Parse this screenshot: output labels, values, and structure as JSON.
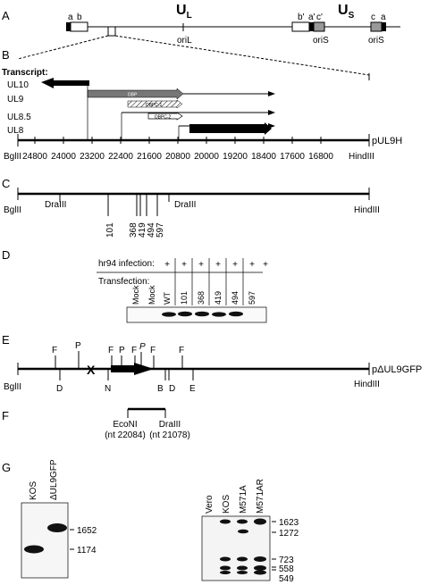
{
  "panels": [
    "A",
    "B",
    "C",
    "D",
    "E",
    "F",
    "G"
  ],
  "panelA": {
    "ul": "U",
    "ul_sub": "L",
    "us": "U",
    "us_sub": "S",
    "repeat_labels": [
      "a",
      "b",
      "b'",
      "a'",
      "c'",
      "c",
      "a"
    ],
    "ori_labels": [
      "oriL",
      "oriS",
      "oriS"
    ]
  },
  "panelB": {
    "transcript_heading": "Transcript:",
    "transcripts": [
      "UL10",
      "UL9",
      "UL8.5",
      "UL8"
    ],
    "box_labels": [
      "OBP",
      "OBPC-1",
      "OBPC-2"
    ],
    "plasmid": "pUL9H",
    "left_site": "BglII",
    "right_site": "HindIII",
    "ticks": [
      "24800",
      "24000",
      "23200",
      "22400",
      "21600",
      "20800",
      "20000",
      "19200",
      "18400",
      "17600",
      "16800"
    ]
  },
  "panelC": {
    "sites": [
      "BglII",
      "DraIII",
      "DraIII",
      "HindIII"
    ],
    "mutations": [
      "101",
      "368",
      "419",
      "494",
      "597"
    ]
  },
  "panelD": {
    "row1_label": "hr94 infection:",
    "row2_label": "Transfection:",
    "infection": [
      "",
      "+",
      "+",
      "+",
      "+",
      "+",
      "+",
      "+"
    ],
    "transfection": [
      "Mock",
      "Mock",
      "WT",
      "101",
      "368",
      "419",
      "494",
      "597"
    ]
  },
  "panelE": {
    "plasmid": "pΔUL9GFP",
    "left_site": "BglII",
    "right_site": "HindIII",
    "top_sites": [
      "F",
      "P",
      "F",
      "P",
      "F",
      "P",
      "F",
      "F"
    ],
    "bottom_sites": [
      "D",
      "N",
      "B",
      "D",
      "E"
    ],
    "deletion_mark": "X"
  },
  "panelF": {
    "left_enzyme": "EcoNI",
    "left_nt": "(nt 22084)",
    "right_enzyme": "DraIII",
    "right_nt": "(nt 21078)"
  },
  "panelG": {
    "left_lanes": [
      "KOS",
      "ΔUL9GFP"
    ],
    "left_markers": [
      "1652",
      "1174"
    ],
    "right_lanes": [
      "Vero",
      "KOS",
      "M571A",
      "M571AR"
    ],
    "right_markers": [
      "1623",
      "1272",
      "723",
      "558",
      "549"
    ]
  }
}
